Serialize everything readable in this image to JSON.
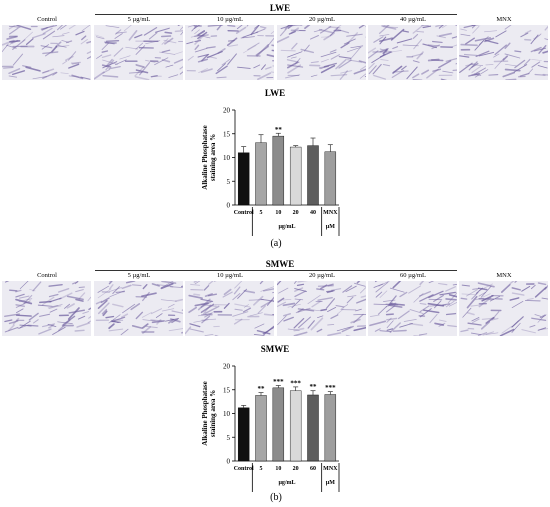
{
  "panels": [
    {
      "id": "a",
      "group_title": "LWE",
      "micro_labels": [
        "Control",
        "5 µg/mL",
        "10 µg/mL",
        "20 µg/mL",
        "40 µg/mL",
        "MNX"
      ],
      "panel_label": "(a)"
    },
    {
      "id": "b",
      "group_title": "SMWE",
      "micro_labels": [
        "Control",
        "5 µg/mL",
        "10 µg/mL",
        "20 µg/mL",
        "60 µg/mL",
        "MNX"
      ],
      "panel_label": "(b)"
    }
  ],
  "chart_data": [
    {
      "type": "bar",
      "title": "LWE",
      "ylabel": "Alkaline Phosphatase staining area %",
      "categories": [
        "Control",
        "5",
        "10",
        "20",
        "40",
        "MNX"
      ],
      "values": [
        11.0,
        13.1,
        14.5,
        12.2,
        12.5,
        11.2
      ],
      "errors": [
        1.3,
        1.7,
        0.6,
        0.3,
        1.6,
        1.5
      ],
      "significance": [
        "",
        "",
        "**",
        "",
        "",
        ""
      ],
      "bar_colors": [
        "#111111",
        "#a6a6a6",
        "#8c8c8c",
        "#d9d9d9",
        "#5e5e5e",
        "#9e9e9e"
      ],
      "group_labels": [
        "µg/mL",
        "µM"
      ],
      "ylim": [
        0,
        20
      ],
      "yticks": [
        0,
        5,
        10,
        15,
        20
      ]
    },
    {
      "type": "bar",
      "title": "SMWE",
      "ylabel": "Alkaline Phosphatase staining area %",
      "categories": [
        "Control",
        "5",
        "10",
        "20",
        "60",
        "MNX"
      ],
      "values": [
        11.2,
        13.8,
        15.4,
        14.8,
        13.9,
        14.0
      ],
      "errors": [
        0.5,
        0.6,
        0.5,
        0.8,
        0.9,
        0.6
      ],
      "significance": [
        "",
        "**",
        "***",
        "***",
        "**",
        "***"
      ],
      "bar_colors": [
        "#111111",
        "#a6a6a6",
        "#8c8c8c",
        "#d9d9d9",
        "#5e5e5e",
        "#9e9e9e"
      ],
      "group_labels": [
        "µg/mL",
        "µM"
      ],
      "ylim": [
        0,
        20
      ],
      "yticks": [
        0,
        5,
        10,
        15,
        20
      ]
    }
  ]
}
